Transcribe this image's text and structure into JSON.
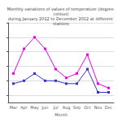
{
  "chart_data": {
    "type": "line",
    "title": "Monthly variations of values of temperature (degree celsius)\nduring January 2012 to December 2012 at different stations",
    "xlabel": "Month",
    "categories": [
      "Mar",
      "Apr",
      "May",
      "Jun",
      "Jul",
      "Aug",
      "Sep",
      "Oct",
      "Nov",
      "Dec"
    ],
    "series": [
      {
        "color": "#ee00ee",
        "marker": "square",
        "line_style": "solid",
        "values": [
          28.5,
          30.2,
          31.0,
          30.2,
          28.8,
          28.2,
          28.5,
          29.8,
          27.8,
          27.5
        ]
      },
      {
        "color": "#3333cc",
        "marker": "square",
        "line_style": "solid",
        "values": [
          27.8,
          28.0,
          28.5,
          28.0,
          28.0,
          27.8,
          27.8,
          28.8,
          27.2,
          27.2
        ]
      }
    ],
    "ylim": [
      26.5,
      32.0
    ],
    "yticks": [
      27,
      28,
      29,
      30,
      31,
      32
    ],
    "grid": true,
    "tick_labels": "x"
  }
}
